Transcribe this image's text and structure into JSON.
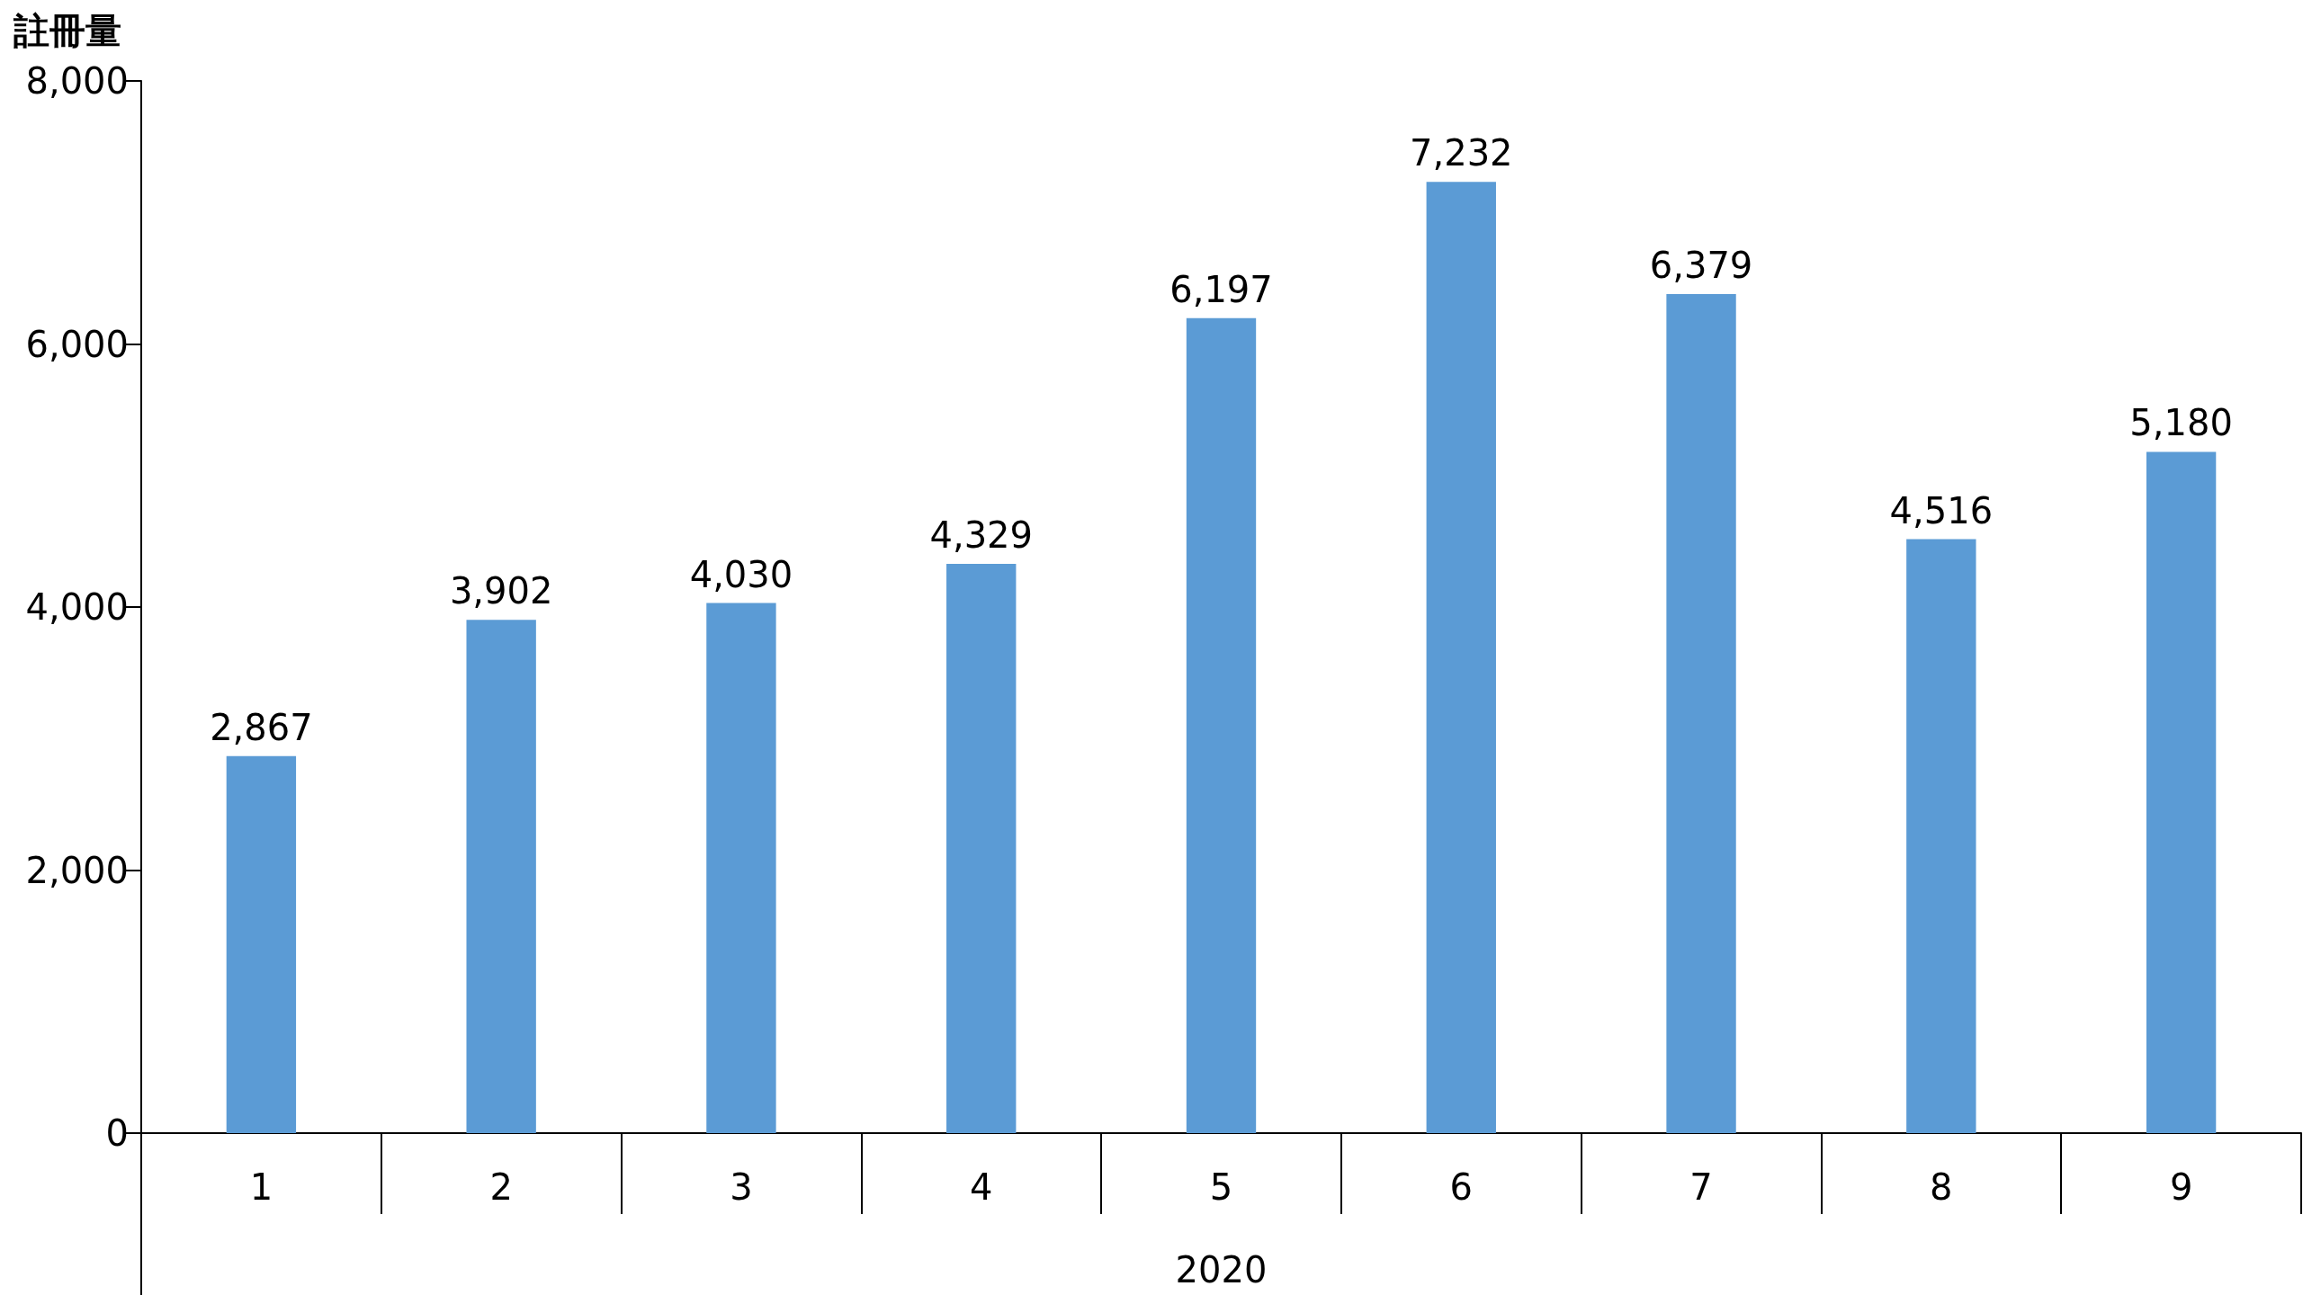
{
  "chart_data": {
    "type": "bar",
    "ylabel": "註冊量",
    "xlabel": "2020",
    "categories": [
      "1",
      "2",
      "3",
      "4",
      "5",
      "6",
      "7",
      "8",
      "9"
    ],
    "values": [
      2867,
      3902,
      4030,
      4329,
      6197,
      7232,
      6379,
      4516,
      5180
    ],
    "value_labels": [
      "2,867",
      "3,902",
      "4,030",
      "4,329",
      "6,197",
      "7,232",
      "6,379",
      "4,516",
      "5,180"
    ],
    "color": "#5b9bd5",
    "ylim": [
      0,
      8000
    ],
    "yticks": [
      0,
      {
        "value": 2000,
        "label": "2,000"
      },
      {
        "value": 4000,
        "label": "4,000"
      },
      {
        "value": 6000,
        "label": "6,000"
      },
      {
        "value": 8000,
        "label": "8,000"
      }
    ]
  }
}
